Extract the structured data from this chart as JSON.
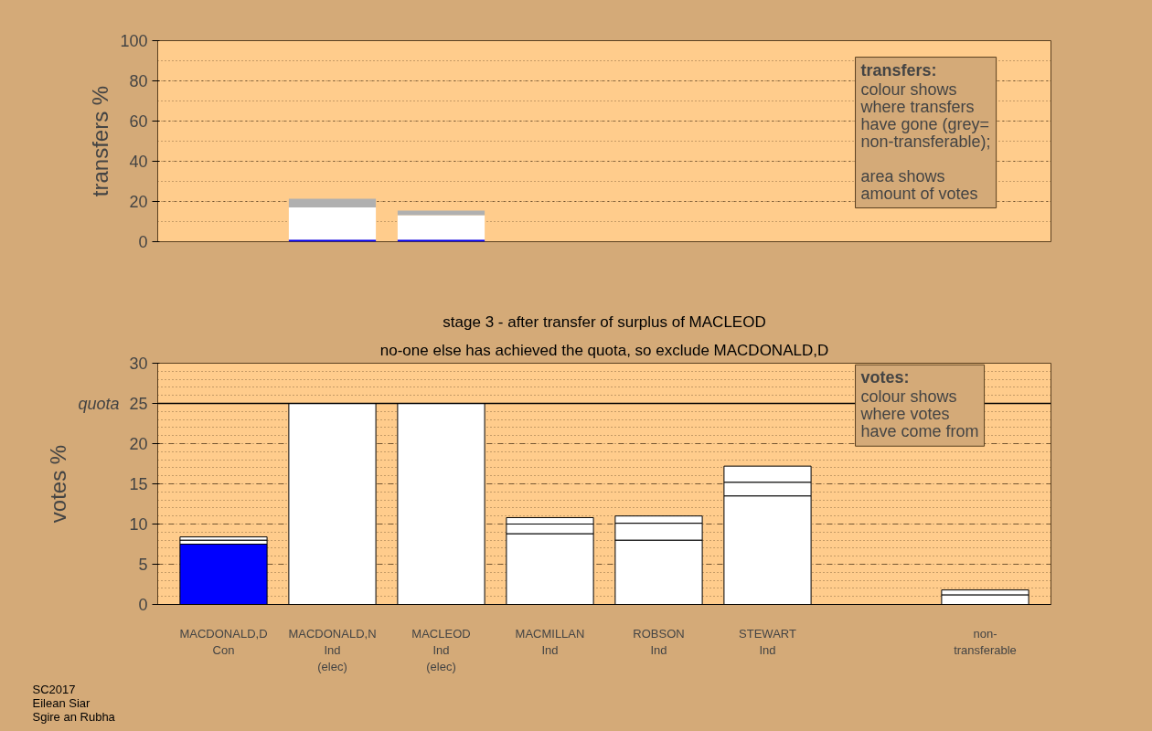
{
  "chart_data": [
    {
      "type": "bar",
      "ylabel": "transfers %",
      "categories": [
        null,
        null,
        null,
        null,
        null,
        null,
        null,
        null
      ],
      "stacked": true,
      "series": [
        {
          "color": "#0000ff",
          "values": [
            null,
            1,
            1,
            null,
            null,
            null,
            null,
            null
          ]
        },
        {
          "color": "#ffffff",
          "values": [
            null,
            16,
            12.2,
            null,
            null,
            null,
            null,
            null
          ]
        },
        {
          "color": "#b0b0b0",
          "values": [
            null,
            4.4,
            2.3,
            null,
            null,
            null,
            null,
            null
          ]
        }
      ],
      "ylim": [
        0,
        100
      ],
      "yticks": [
        0,
        20,
        40,
        60,
        80,
        100
      ],
      "grid": true,
      "tick_labels": "y",
      "annotations": [
        "transfers:",
        "colour shows\nwhere transfers\nhave gone (grey=\nnon-transferable);",
        "area shows\namount of votes"
      ]
    },
    {
      "type": "bar",
      "title": "stage 3 - after transfer of surplus of MACLEOD",
      "subtitle": "no-one else has achieved the quota, so exclude MACDONALD,D",
      "ylabel": "votes %",
      "categories": [
        "MACDONALD,D\nCon",
        "MACDONALD,N\nInd\n(elec)",
        "MACLEOD\nInd\n(elec)",
        "MACMILLAN\nInd",
        "ROBSON\nInd",
        "STEWART\nInd",
        null,
        "non-\ntransferable"
      ],
      "stacked": true,
      "series": [
        {
          "colors": [
            "#0000ff",
            "#ffffff",
            "#ffffff",
            "#ffffff",
            "#ffffff",
            "#ffffff",
            "#ffffff",
            "#ffffff"
          ],
          "values": [
            7.5,
            25,
            25,
            8.8,
            8.0,
            13.5,
            null,
            1.2
          ]
        },
        {
          "color": "#ffffff",
          "values": [
            0.5,
            null,
            null,
            1.2,
            2.1,
            1.7,
            null,
            0.6
          ]
        },
        {
          "color": "#ffffff",
          "values": [
            0.4,
            null,
            null,
            0.8,
            0.9,
            2.0,
            null,
            null
          ]
        }
      ],
      "ylim": [
        0,
        30
      ],
      "yticks": [
        0,
        5,
        10,
        15,
        20,
        25,
        30
      ],
      "grid": true,
      "ref_lines": [
        {
          "axis": "y",
          "value": 25,
          "label": "quota",
          "color": "#000000"
        }
      ],
      "annotations": [
        "votes:",
        "colour shows\nwhere votes\nhave come from",
        "SC2017\nEilean Siar\nSgire an Rubha"
      ]
    }
  ]
}
